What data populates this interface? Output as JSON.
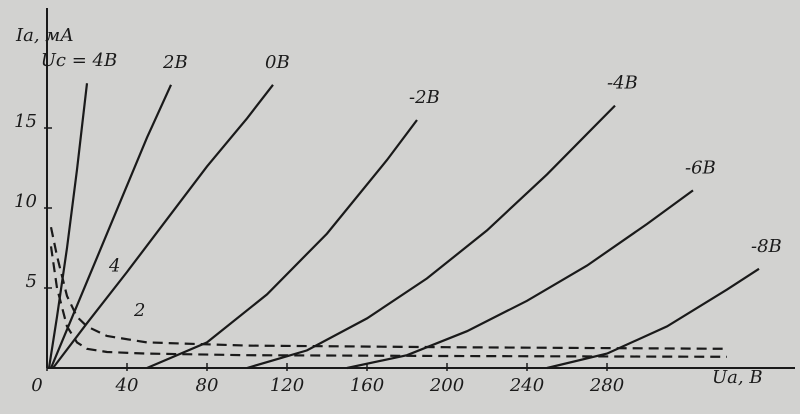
{
  "chart_data": {
    "type": "line",
    "y_label": "Ia, мА",
    "x_label": "Ua, B",
    "xlim": [
      0,
      375
    ],
    "ylim": [
      0,
      23
    ],
    "xticks": [
      0,
      40,
      80,
      120,
      160,
      200,
      240,
      280
    ],
    "yticks": [
      5,
      10,
      15
    ],
    "color": "#1a1a1a",
    "series": [
      {
        "name": "Uc = 4B",
        "style": "solid",
        "x": [
          1,
          5,
          10,
          15,
          20
        ],
        "values": [
          0,
          3.2,
          7.5,
          12.4,
          17.8
        ]
      },
      {
        "name": "2B",
        "style": "solid",
        "x": [
          2,
          10,
          20,
          30,
          40,
          50,
          62
        ],
        "values": [
          0,
          2.4,
          5.4,
          8.4,
          11.4,
          14.4,
          17.7
        ]
      },
      {
        "name": "0B",
        "style": "solid",
        "x": [
          3,
          20,
          40,
          60,
          80,
          100,
          113
        ],
        "values": [
          0,
          2.8,
          6,
          9.3,
          12.6,
          15.6,
          17.7
        ]
      },
      {
        "name": "-2B",
        "style": "solid",
        "x": [
          50,
          80,
          110,
          140,
          170,
          185
        ],
        "values": [
          0,
          1.6,
          4.6,
          8.4,
          13,
          15.5
        ]
      },
      {
        "name": "-4B",
        "style": "solid",
        "x": [
          100,
          130,
          160,
          190,
          220,
          250,
          284
        ],
        "values": [
          0,
          1.1,
          3.1,
          5.6,
          8.6,
          12.1,
          16.4
        ]
      },
      {
        "name": "-6B",
        "style": "solid",
        "x": [
          150,
          180,
          210,
          240,
          270,
          300,
          323
        ],
        "values": [
          0,
          0.8,
          2.3,
          4.2,
          6.4,
          9,
          11.1
        ]
      },
      {
        "name": "-8B",
        "style": "solid",
        "x": [
          250,
          280,
          310,
          340,
          356
        ],
        "values": [
          0,
          0.9,
          2.6,
          4.9,
          6.2
        ]
      },
      {
        "name": "4",
        "style": "dashed",
        "x": [
          2,
          5,
          10,
          15,
          20,
          30,
          50,
          100,
          200,
          340
        ],
        "values": [
          8.8,
          7,
          4.5,
          3.2,
          2.6,
          2,
          1.6,
          1.4,
          1.3,
          1.2
        ]
      },
      {
        "name": "2",
        "style": "dashed",
        "x": [
          2,
          5,
          10,
          15,
          20,
          30,
          50,
          100,
          200,
          340
        ],
        "values": [
          7.6,
          5,
          2.6,
          1.6,
          1.2,
          1,
          0.9,
          0.8,
          0.75,
          0.7
        ]
      }
    ]
  }
}
